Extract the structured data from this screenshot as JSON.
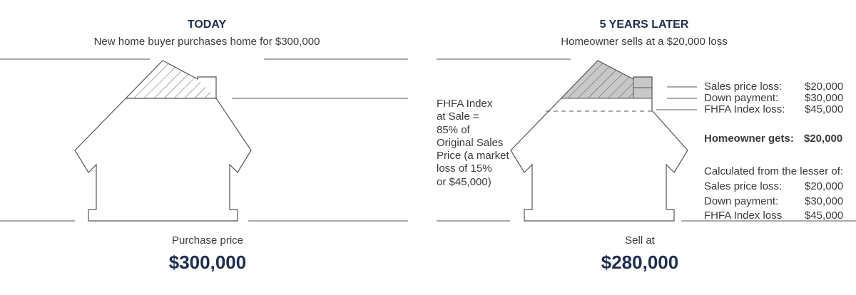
{
  "today": {
    "title": "TODAY",
    "subtitle": "New home buyer purchases home for $300,000",
    "caption": "Purchase price",
    "price": "$300,000"
  },
  "later": {
    "title": "5 YEARS LATER",
    "subtitle": "Homeowner sells at a $20,000 loss",
    "caption": "Sell at",
    "price": "$280,000"
  },
  "fhfa_note": [
    "FHFA Index",
    "at Sale =",
    "85% of",
    "Original Sales",
    "Price (a market",
    "loss of 15%",
    "or $45,000)"
  ],
  "breakdown": [
    {
      "label": "Sales price loss:",
      "value": "$20,000"
    },
    {
      "label": "Down payment:",
      "value": "$30,000"
    },
    {
      "label": "FHFA Index loss:",
      "value": "$45,000"
    }
  ],
  "homeowner_gets": {
    "label": "Homeowner gets:",
    "value": "$20,000"
  },
  "lesser_of": {
    "heading": "Calculated from the lesser of:",
    "items": [
      {
        "label": "Sales price loss:",
        "value": "$20,000"
      },
      {
        "label": "Down payment:",
        "value": "$30,000"
      },
      {
        "label": "FHFA Index loss",
        "value": "$45,000"
      }
    ]
  },
  "colors": {
    "navy": "#1f2d4e",
    "text": "#3a3a3a",
    "line": "#555555",
    "fill": "#c8c8c8"
  }
}
